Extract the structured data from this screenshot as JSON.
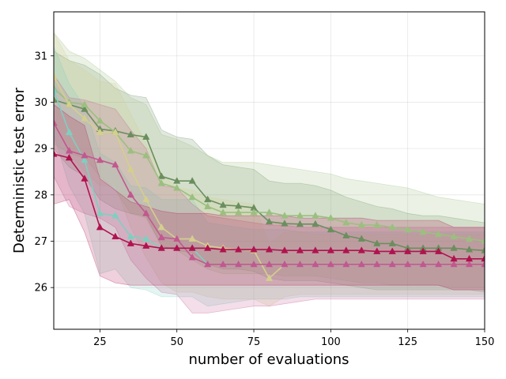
{
  "chart_data": {
    "type": "line",
    "title": "",
    "xlabel": "number of evaluations",
    "ylabel": "Deterministic test error",
    "xlim": [
      10,
      150
    ],
    "ylim": [
      25.1,
      31.95
    ],
    "xticks": [
      25,
      50,
      75,
      100,
      125,
      150
    ],
    "yticks": [
      26,
      27,
      28,
      29,
      30,
      31
    ],
    "grid": true,
    "legend": "none",
    "x": [
      10,
      15,
      20,
      25,
      30,
      35,
      40,
      45,
      50,
      55,
      60,
      65,
      70,
      75,
      80,
      85,
      90,
      95,
      100,
      105,
      110,
      115,
      120,
      125,
      130,
      135,
      140,
      145,
      150
    ],
    "series": [
      {
        "name": "series-dark-green",
        "color": "#6b8e5e",
        "marker": "triangle",
        "values": [
          30.05,
          29.95,
          29.85,
          29.42,
          29.38,
          29.3,
          29.25,
          28.4,
          28.3,
          28.3,
          27.9,
          27.78,
          27.76,
          27.72,
          27.42,
          27.38,
          27.37,
          27.37,
          27.25,
          27.12,
          27.05,
          26.95,
          26.95,
          26.85,
          26.85,
          26.85,
          26.85,
          26.82,
          26.8
        ],
        "lower": [
          29.0,
          28.6,
          28.4,
          27.9,
          27.7,
          27.6,
          27.55,
          26.9,
          26.8,
          26.75,
          26.5,
          26.4,
          26.4,
          26.35,
          26.2,
          26.15,
          26.15,
          26.15,
          26.1,
          26.05,
          26.0,
          25.95,
          25.95,
          25.95,
          25.95,
          25.95,
          25.95,
          25.95,
          25.9
        ],
        "upper": [
          31.1,
          30.9,
          30.8,
          30.6,
          30.3,
          30.15,
          30.1,
          29.4,
          29.25,
          29.2,
          28.85,
          28.65,
          28.6,
          28.55,
          28.3,
          28.25,
          28.25,
          28.2,
          28.1,
          27.95,
          27.85,
          27.75,
          27.7,
          27.6,
          27.55,
          27.55,
          27.5,
          27.45,
          27.4
        ]
      },
      {
        "name": "series-light-green",
        "color": "#9bbf7f",
        "marker": "triangle",
        "values": [
          30.3,
          30.0,
          29.95,
          29.6,
          29.35,
          28.95,
          28.85,
          28.25,
          28.15,
          27.95,
          27.75,
          27.62,
          27.62,
          27.62,
          27.62,
          27.55,
          27.55,
          27.55,
          27.5,
          27.4,
          27.35,
          27.35,
          27.3,
          27.25,
          27.2,
          27.15,
          27.1,
          27.05,
          27.0
        ],
        "lower": [
          29.1,
          28.9,
          28.8,
          28.4,
          28.1,
          27.6,
          27.5,
          26.9,
          26.8,
          26.6,
          26.4,
          26.3,
          26.3,
          26.3,
          26.3,
          26.25,
          26.25,
          26.25,
          26.2,
          26.15,
          26.1,
          26.1,
          26.05,
          26.05,
          26.05,
          26.05,
          26.0,
          26.0,
          26.0
        ],
        "upper": [
          31.5,
          31.1,
          30.95,
          30.7,
          30.45,
          30.1,
          29.95,
          29.3,
          29.2,
          29.05,
          28.85,
          28.7,
          28.7,
          28.7,
          28.65,
          28.6,
          28.55,
          28.5,
          28.45,
          28.35,
          28.3,
          28.25,
          28.2,
          28.15,
          28.05,
          27.95,
          27.9,
          27.85,
          27.8
        ]
      },
      {
        "name": "series-khaki",
        "color": "#d4cf8e",
        "marker": "triangle",
        "values": [
          30.55,
          29.95,
          29.65,
          29.35,
          29.35,
          28.55,
          27.9,
          27.3,
          27.05,
          27.05,
          26.9,
          26.85,
          26.82,
          26.8,
          26.2,
          26.5,
          26.5,
          26.5,
          26.5,
          26.5,
          26.5,
          26.5,
          26.5,
          26.5,
          26.5,
          26.5,
          26.5,
          26.5,
          26.5
        ],
        "lower": [
          29.6,
          28.9,
          28.5,
          28.2,
          28.2,
          27.3,
          26.65,
          26.1,
          25.9,
          25.9,
          25.8,
          25.75,
          25.75,
          25.75,
          25.6,
          25.8,
          25.85,
          25.85,
          25.85,
          25.85,
          25.85,
          25.85,
          25.85,
          25.85,
          25.85,
          25.85,
          25.85,
          25.85,
          25.85
        ],
        "upper": [
          31.5,
          30.9,
          30.7,
          30.45,
          30.4,
          29.75,
          29.1,
          28.45,
          28.15,
          28.1,
          27.95,
          27.9,
          27.85,
          27.8,
          26.95,
          27.2,
          27.2,
          27.15,
          27.15,
          27.15,
          27.15,
          27.15,
          27.15,
          27.15,
          27.15,
          27.15,
          27.15,
          27.15,
          27.15
        ]
      },
      {
        "name": "series-teal",
        "color": "#7fcfc0",
        "marker": "triangle",
        "values": [
          30.25,
          29.35,
          28.75,
          27.6,
          27.55,
          27.1,
          27.05,
          26.85,
          26.85,
          26.85,
          26.5,
          26.5,
          26.5,
          26.5,
          26.5,
          26.5,
          26.5,
          26.5,
          26.5,
          26.5,
          26.5,
          26.5,
          26.5,
          26.5,
          26.5,
          26.5,
          26.5,
          26.5,
          26.5
        ],
        "lower": [
          29.3,
          28.2,
          27.6,
          26.3,
          26.4,
          26.0,
          25.95,
          25.8,
          25.8,
          25.8,
          25.6,
          25.65,
          25.7,
          25.75,
          25.75,
          25.75,
          25.8,
          25.8,
          25.8,
          25.8,
          25.8,
          25.8,
          25.8,
          25.8,
          25.8,
          25.8,
          25.8,
          25.8,
          25.8
        ],
        "upper": [
          31.2,
          30.4,
          29.9,
          28.9,
          28.7,
          28.2,
          28.15,
          27.9,
          27.9,
          27.9,
          27.4,
          27.35,
          27.3,
          27.25,
          27.25,
          27.25,
          27.2,
          27.2,
          27.2,
          27.2,
          27.2,
          27.2,
          27.2,
          27.2,
          27.2,
          27.2,
          27.2,
          27.2,
          27.2
        ]
      },
      {
        "name": "series-pink",
        "color": "#c2588f",
        "marker": "triangle",
        "values": [
          29.55,
          28.95,
          28.85,
          28.75,
          28.65,
          28.0,
          27.6,
          27.08,
          27.05,
          26.65,
          26.5,
          26.5,
          26.5,
          26.5,
          26.5,
          26.5,
          26.5,
          26.5,
          26.5,
          26.5,
          26.5,
          26.5,
          26.5,
          26.5,
          26.5,
          26.5,
          26.5,
          26.5,
          26.5
        ],
        "lower": [
          28.4,
          27.75,
          27.6,
          27.5,
          27.3,
          26.6,
          26.2,
          25.9,
          25.85,
          25.45,
          25.45,
          25.5,
          25.55,
          25.6,
          25.6,
          25.65,
          25.7,
          25.75,
          25.75,
          25.75,
          25.75,
          25.75,
          25.75,
          25.75,
          25.75,
          25.75,
          25.75,
          25.75,
          25.75
        ],
        "upper": [
          30.6,
          30.1,
          30.05,
          29.95,
          29.85,
          29.4,
          29.0,
          28.2,
          28.15,
          27.8,
          27.55,
          27.5,
          27.45,
          27.4,
          27.35,
          27.35,
          27.3,
          27.3,
          27.3,
          27.3,
          27.3,
          27.3,
          27.3,
          27.3,
          27.3,
          27.3,
          27.3,
          27.3,
          27.3
        ]
      },
      {
        "name": "series-crimson",
        "color": "#b0134f",
        "marker": "triangle",
        "values": [
          28.88,
          28.8,
          28.35,
          27.3,
          27.1,
          26.95,
          26.9,
          26.85,
          26.85,
          26.85,
          26.85,
          26.82,
          26.82,
          26.82,
          26.82,
          26.8,
          26.8,
          26.8,
          26.8,
          26.8,
          26.8,
          26.78,
          26.78,
          26.78,
          26.78,
          26.78,
          26.62,
          26.62,
          26.62
        ],
        "lower": [
          27.8,
          27.9,
          27.2,
          26.25,
          26.1,
          26.05,
          26.05,
          26.05,
          26.05,
          26.05,
          26.05,
          26.05,
          26.05,
          26.05,
          26.05,
          26.05,
          26.05,
          26.05,
          26.05,
          26.05,
          26.05,
          26.05,
          26.05,
          26.05,
          26.05,
          26.05,
          25.95,
          25.95,
          25.95
        ],
        "upper": [
          29.95,
          29.7,
          29.5,
          28.35,
          28.1,
          27.85,
          27.75,
          27.65,
          27.6,
          27.6,
          27.6,
          27.55,
          27.55,
          27.55,
          27.55,
          27.55,
          27.5,
          27.5,
          27.5,
          27.5,
          27.5,
          27.45,
          27.45,
          27.45,
          27.45,
          27.45,
          27.3,
          27.3,
          27.3
        ]
      }
    ]
  }
}
